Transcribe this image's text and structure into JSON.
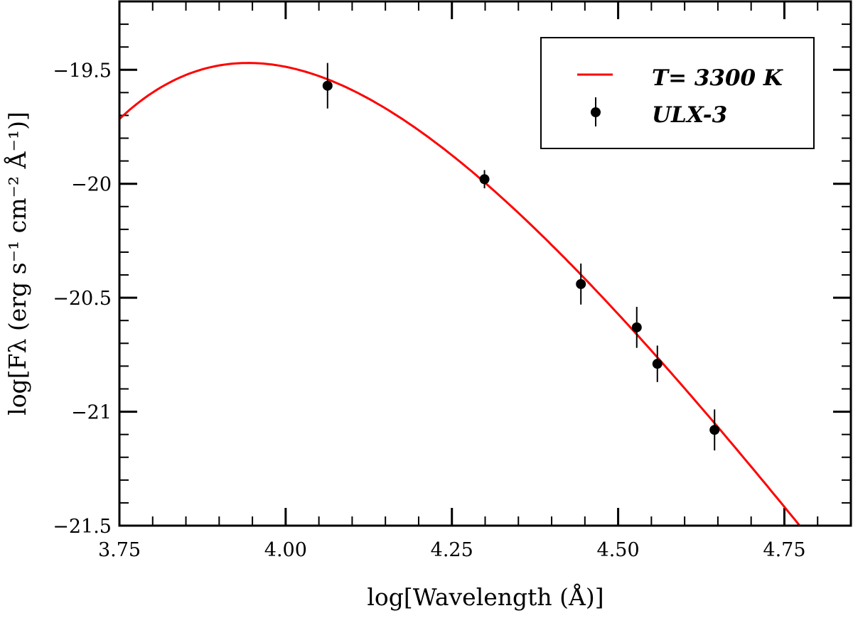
{
  "chart_data": {
    "type": "scatter",
    "title": "",
    "xlabel": "log[Wavelength (Å)]",
    "ylabel": "log[Fλ (erg s⁻¹ cm⁻² Å⁻¹)]",
    "xlim": [
      3.75,
      4.85
    ],
    "ylim": [
      -21.5,
      -19.2
    ],
    "xticks": [
      "3.75",
      "4.00",
      "4.25",
      "4.50",
      "4.75"
    ],
    "yticks": [
      "-19.5",
      "-20",
      "-20.5",
      "-21",
      "-21.5"
    ],
    "grid": false,
    "legend_position": "top-right",
    "series": [
      {
        "name": "ULX-3",
        "kind": "points-with-errorbars",
        "color": "#000000",
        "x": [
          4.063,
          4.299,
          4.444,
          4.528,
          4.559,
          4.645
        ],
        "y": [
          -19.57,
          -19.98,
          -20.44,
          -20.63,
          -20.79,
          -21.08
        ],
        "yerr": [
          0.1,
          0.04,
          0.09,
          0.09,
          0.08,
          0.09
        ]
      },
      {
        "name": "T= 3300 K",
        "kind": "blackbody-curve",
        "color": "#ff0000",
        "temperature_K": 3300,
        "peak_log_flux": -19.47
      }
    ]
  }
}
